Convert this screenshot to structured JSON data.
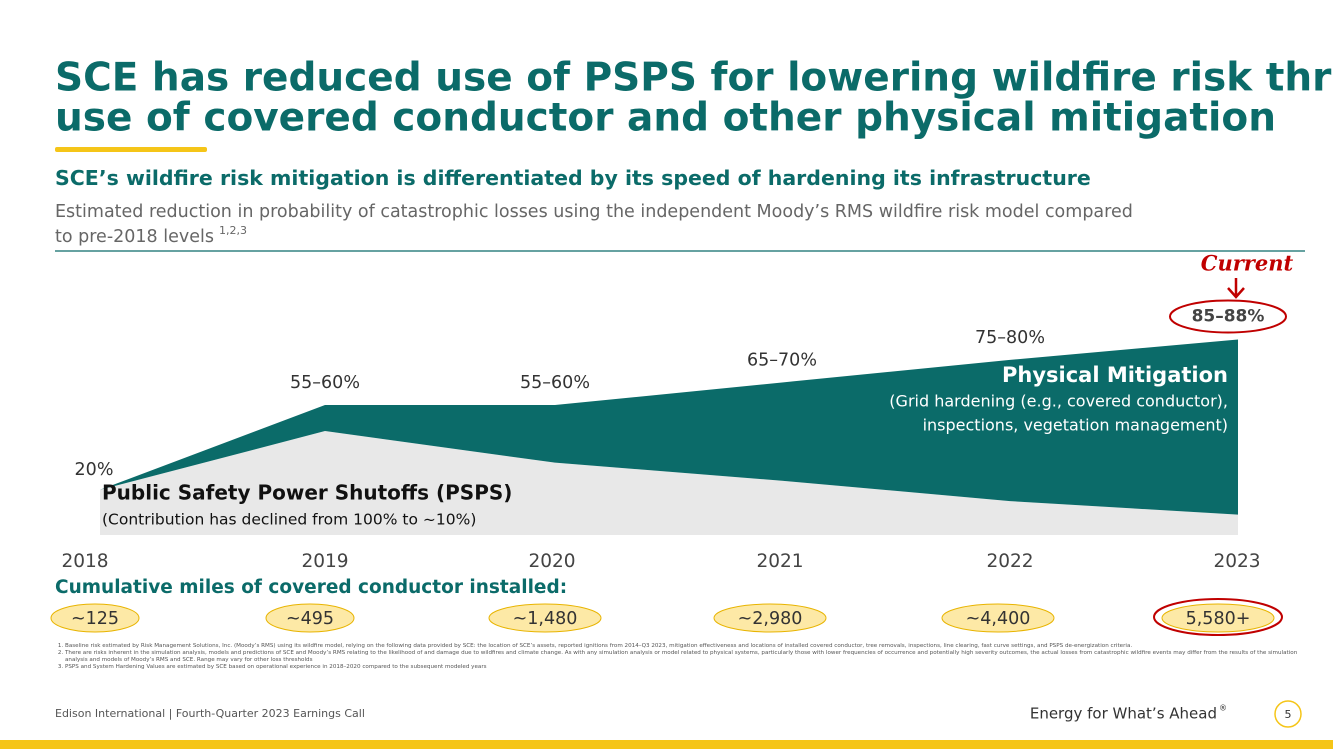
{
  "header": {
    "title_lines": [
      "SCE has reduced use of PSPS for lowering wildfire risk through",
      "use of covered conductor and other physical mitigation"
    ],
    "subtitle": "SCE’s wildfire risk mitigation is differentiated by its speed of hardening its infrastructure",
    "description_lines": [
      "Estimated reduction in probability of catastrophic losses using the independent Moody’s RMS wildfire risk model compared",
      "to pre-2018 levels"
    ],
    "description_superscript": "1,2,3"
  },
  "chart_data": {
    "type": "area",
    "categories": [
      "2018",
      "2019",
      "2020",
      "2021",
      "2022",
      "2023"
    ],
    "series": [
      {
        "name": "Physical Mitigation",
        "color": "#0b6b69",
        "values": [
          20,
          57.5,
          57.5,
          67.5,
          77.5,
          86.5
        ],
        "value_labels": [
          "20%",
          "55–60%",
          "55–60%",
          "65–70%",
          "75–80%",
          "85–88%"
        ],
        "description": [
          "(Grid hardening (e.g., covered conductor),",
          "inspections, vegetation management)"
        ]
      },
      {
        "name": "Public Safety Power Shutoffs (PSPS)",
        "color": "#e8e8e8",
        "values": [
          20,
          46,
          32,
          24,
          15,
          9
        ],
        "description": [
          "(Contribution has declined from 100% to ~10%)"
        ]
      }
    ],
    "ylim": [
      0,
      100
    ],
    "annotation": "Current",
    "miles": {
      "title": "Cumulative miles of covered conductor installed:",
      "values": [
        125,
        495,
        1480,
        2980,
        4400,
        5580
      ],
      "value_labels": [
        "~125",
        "~495",
        "~1,480",
        "~2,980",
        "~4,400",
        "5,580+"
      ]
    }
  },
  "footnotes": [
    "Baseline risk estimated by Risk Management Solutions, Inc. (Moody’s RMS) using its wildfire model, relying on the following data provided by SCE: the location of SCE’s assets, reported ignitions from 2014–Q3 2023, mitigation effectiveness and locations of installed covered conductor, tree removals, inspections, line clearing, fast curve settings, and PSPS de-energization criteria.",
    "There are risks inherent in the simulation analysis, models and predictions of SCE and Moody’s RMS relating to the likelihood of and damage due to wildfires and climate change. As with any simulation analysis or model related to physical systems, particularly those with lower frequencies of occurrence and potentially high severity outcomes, the actual losses from catastrophic wildfire events may differ from the results of the simulation analysis and models of Moody’s RMS and SCE. Range may vary for other loss thresholds",
    "PSPS and System Hardening Values are estimated by SCE based on operational experience in 2018–2020 compared to the subsequent modeled years"
  ],
  "footer": {
    "left": "Edison International |  Fourth-Quarter 2023 Earnings Call",
    "tagline": "Energy for What’s Ahead",
    "tagline_mark": "®",
    "page": "5"
  }
}
